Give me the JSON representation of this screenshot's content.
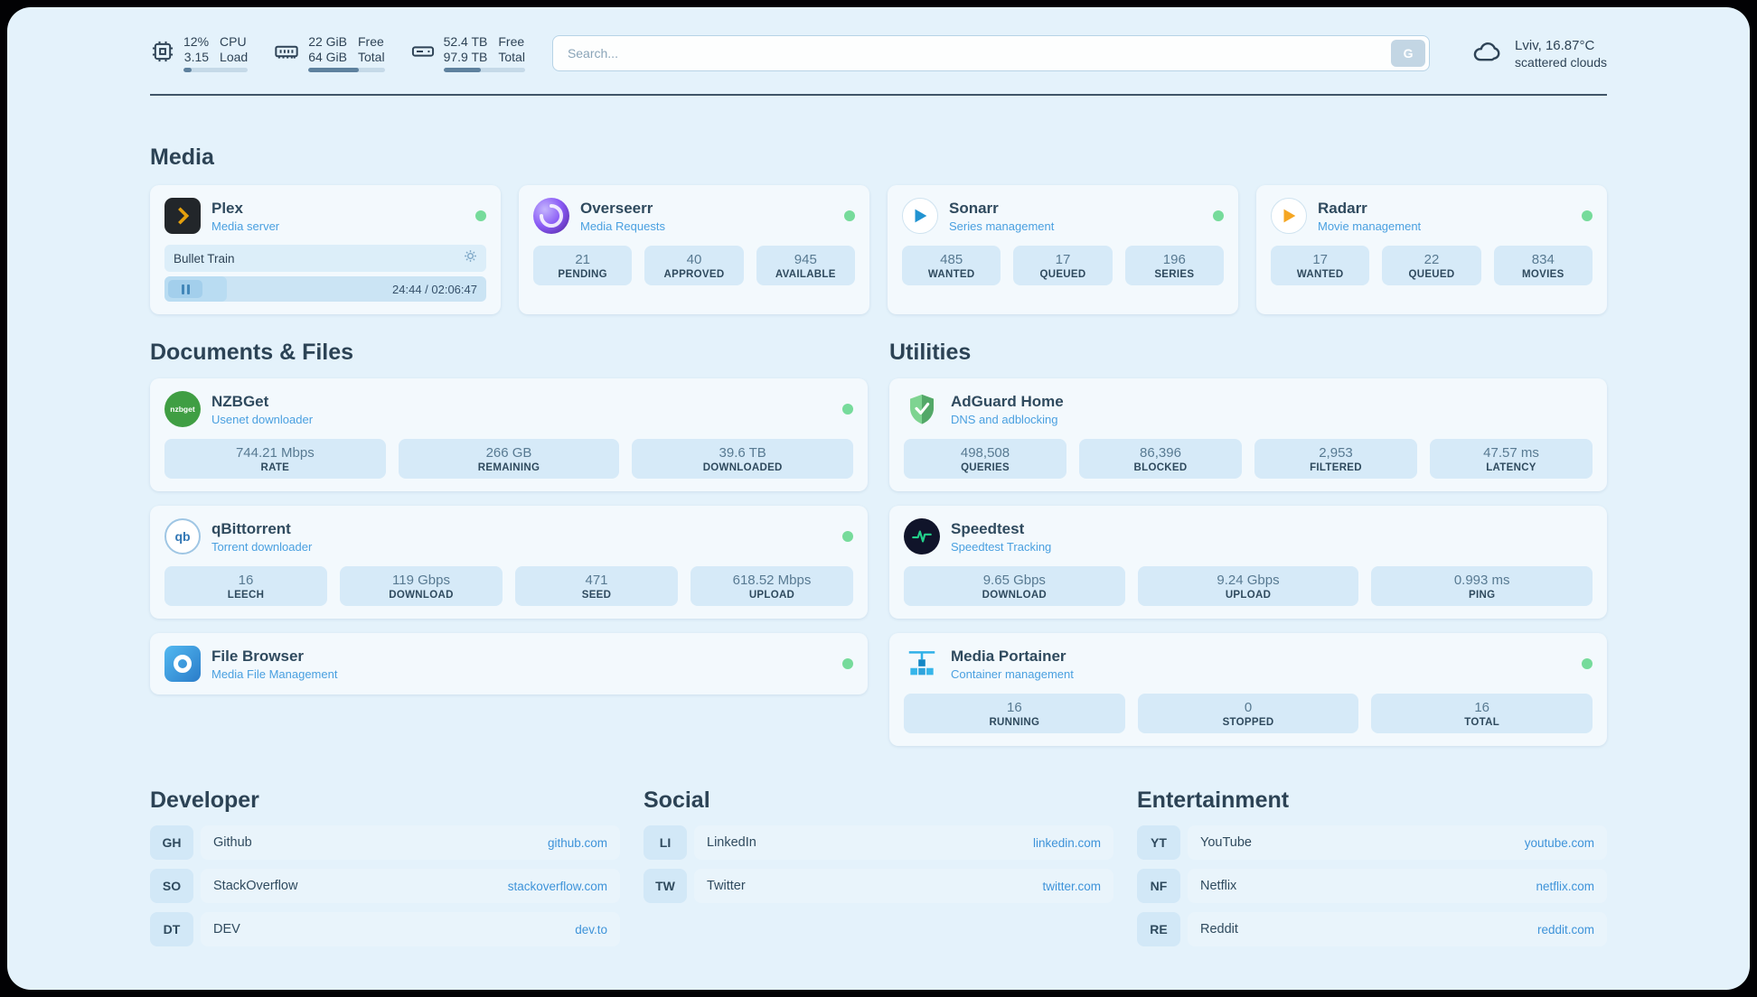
{
  "header": {
    "cpu": {
      "value_top": "12%",
      "value_bottom": "3.15",
      "label_top": "CPU",
      "label_bottom": "Load",
      "bar_percent": 12
    },
    "memory": {
      "value_top": "22 GiB",
      "value_bottom": "64 GiB",
      "label_top": "Free",
      "label_bottom": "Total",
      "bar_percent": 66
    },
    "disk": {
      "value_top": "52.4 TB",
      "value_bottom": "97.9 TB",
      "label_top": "Free",
      "label_bottom": "Total",
      "bar_percent": 46
    },
    "search": {
      "placeholder": "Search...",
      "engine_label": "G"
    },
    "weather": {
      "location": "Lviv, 16.87°C",
      "condition": "scattered clouds"
    }
  },
  "sections": {
    "media": {
      "title": "Media",
      "plex": {
        "name": "Plex",
        "subtitle": "Media server",
        "now_playing": "Bullet Train",
        "elapsed_total": "24:44 / 02:06:47",
        "progress_percent": 19.5
      },
      "overseerr": {
        "name": "Overseerr",
        "subtitle": "Media Requests",
        "stats": [
          {
            "value": "21",
            "label": "PENDING"
          },
          {
            "value": "40",
            "label": "APPROVED"
          },
          {
            "value": "945",
            "label": "AVAILABLE"
          }
        ]
      },
      "sonarr": {
        "name": "Sonarr",
        "subtitle": "Series management",
        "stats": [
          {
            "value": "485",
            "label": "WANTED"
          },
          {
            "value": "17",
            "label": "QUEUED"
          },
          {
            "value": "196",
            "label": "SERIES"
          }
        ]
      },
      "radarr": {
        "name": "Radarr",
        "subtitle": "Movie management",
        "stats": [
          {
            "value": "17",
            "label": "WANTED"
          },
          {
            "value": "22",
            "label": "QUEUED"
          },
          {
            "value": "834",
            "label": "MOVIES"
          }
        ]
      }
    },
    "documents": {
      "title": "Documents & Files",
      "nzbget": {
        "name": "NZBGet",
        "subtitle": "Usenet downloader",
        "stats": [
          {
            "value": "744.21 Mbps",
            "label": "RATE"
          },
          {
            "value": "266 GB",
            "label": "REMAINING"
          },
          {
            "value": "39.6 TB",
            "label": "DOWNLOADED"
          }
        ]
      },
      "qbittorrent": {
        "name": "qBittorrent",
        "subtitle": "Torrent downloader",
        "stats": [
          {
            "value": "16",
            "label": "LEECH"
          },
          {
            "value": "119 Gbps",
            "label": "DOWNLOAD"
          },
          {
            "value": "471",
            "label": "SEED"
          },
          {
            "value": "618.52 Mbps",
            "label": "UPLOAD"
          }
        ]
      },
      "filebrowser": {
        "name": "File Browser",
        "subtitle": "Media File Management"
      }
    },
    "utilities": {
      "title": "Utilities",
      "adguard": {
        "name": "AdGuard Home",
        "subtitle": "DNS and adblocking",
        "stats": [
          {
            "value": "498,508",
            "label": "QUERIES"
          },
          {
            "value": "86,396",
            "label": "BLOCKED"
          },
          {
            "value": "2,953",
            "label": "FILTERED"
          },
          {
            "value": "47.57 ms",
            "label": "LATENCY"
          }
        ]
      },
      "speedtest": {
        "name": "Speedtest",
        "subtitle": "Speedtest Tracking",
        "stats": [
          {
            "value": "9.65 Gbps",
            "label": "DOWNLOAD"
          },
          {
            "value": "9.24 Gbps",
            "label": "UPLOAD"
          },
          {
            "value": "0.993 ms",
            "label": "PING"
          }
        ]
      },
      "portainer": {
        "name": "Media Portainer",
        "subtitle": "Container management",
        "stats": [
          {
            "value": "16",
            "label": "RUNNING"
          },
          {
            "value": "0",
            "label": "STOPPED"
          },
          {
            "value": "16",
            "label": "TOTAL"
          }
        ]
      }
    },
    "bookmarks": [
      {
        "title": "Developer",
        "items": [
          {
            "abbr": "GH",
            "name": "Github",
            "url": "github.com"
          },
          {
            "abbr": "SO",
            "name": "StackOverflow",
            "url": "stackoverflow.com"
          },
          {
            "abbr": "DT",
            "name": "DEV",
            "url": "dev.to"
          }
        ]
      },
      {
        "title": "Social",
        "items": [
          {
            "abbr": "LI",
            "name": "LinkedIn",
            "url": "linkedin.com"
          },
          {
            "abbr": "TW",
            "name": "Twitter",
            "url": "twitter.com"
          }
        ]
      },
      {
        "title": "Entertainment",
        "items": [
          {
            "abbr": "YT",
            "name": "YouTube",
            "url": "youtube.com"
          },
          {
            "abbr": "NF",
            "name": "Netflix",
            "url": "netflix.com"
          },
          {
            "abbr": "RE",
            "name": "Reddit",
            "url": "reddit.com"
          }
        ]
      }
    ]
  },
  "colors": {
    "accent_blue": "#3e93d9",
    "status_green": "#76db9b",
    "page_bg": "#e4f2fb"
  }
}
